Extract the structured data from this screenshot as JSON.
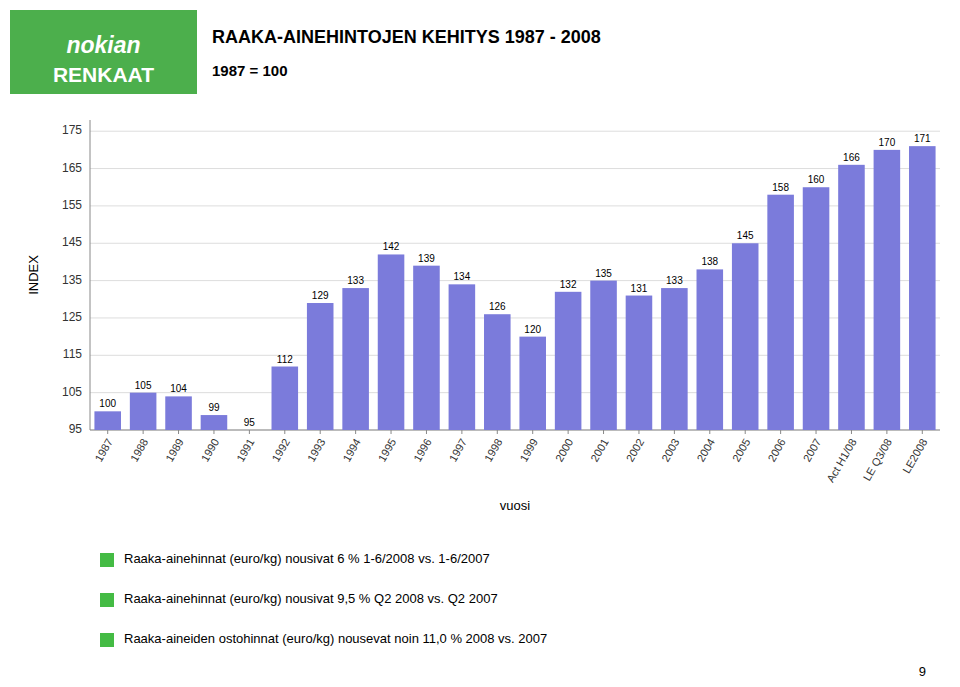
{
  "chart_data": {
    "type": "bar",
    "title": "RAAKA-AINEHINTOJEN KEHITYS 1987 - 2008",
    "subtitle": "1987 = 100",
    "ylabel": "INDEX",
    "xlabel": "vuosi",
    "categories": [
      "1987",
      "1988",
      "1989",
      "1990",
      "1991",
      "1992",
      "1993",
      "1994",
      "1995",
      "1996",
      "1997",
      "1998",
      "1999",
      "2000",
      "2001",
      "2002",
      "2003",
      "2004",
      "2005",
      "2006",
      "2007",
      "Act H1/08",
      "LE Q3/08",
      "LE2008"
    ],
    "values": [
      100,
      105,
      104,
      99,
      95,
      112,
      129,
      133,
      142,
      139,
      134,
      126,
      120,
      132,
      135,
      131,
      133,
      138,
      145,
      158,
      160,
      166,
      170,
      171
    ],
    "color": "#7b7bdb",
    "ylim": [
      95,
      178
    ],
    "yticks": [
      95,
      105,
      115,
      125,
      135,
      145,
      155,
      165,
      175
    ],
    "grid": true,
    "data_labels": true,
    "annotations": [
      "Raaka-ainehinnat (euro/kg) nousivat 6 % 1-6/2008 vs. 1-6/2007",
      "Raaka-ainehinnat (euro/kg) nousivat 9,5 % Q2 2008 vs. Q2 2007",
      "Raaka-aineiden ostohinnat (euro/kg) nousevat noin 11,0 % 2008 vs. 2007"
    ],
    "logo": [
      "nokian",
      "RENKAAT"
    ],
    "page_number": "9"
  }
}
